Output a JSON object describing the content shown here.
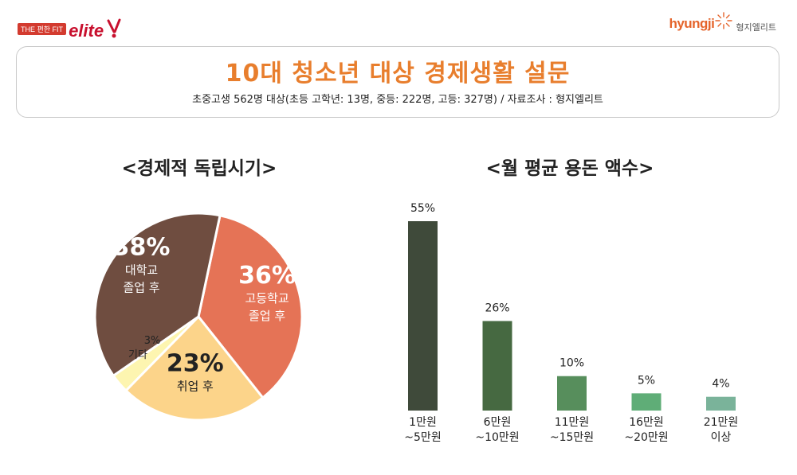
{
  "header": {
    "left_logo": {
      "tag": "THE 편한 FIT",
      "word": "elite"
    },
    "right_logo": {
      "brand": "hyungji",
      "brand_ko": "형지엘리트"
    }
  },
  "banner": {
    "title": "10대 청소년 대상 경제생활 설문",
    "subtitle": "초중고생 562명 대상(초등 고학년: 13명, 중등: 222명, 고등: 327명) /   자료조사 : 형지엘리트"
  },
  "colors": {
    "pie": [
      "#e57356",
      "#fcd48a",
      "#fdf5b0",
      "#6f4d40"
    ],
    "bars": [
      "#3f4a3a",
      "#466941",
      "#578e5c",
      "#5fad77",
      "#7ab39a"
    ]
  },
  "chart_data": [
    {
      "type": "pie",
      "title": "<경제적 독립시기>",
      "slices": [
        {
          "pct": "36%",
          "value": 36,
          "label": [
            "고등학교",
            "졸업 후"
          ]
        },
        {
          "pct": "23%",
          "value": 23,
          "label": [
            "취업 후"
          ]
        },
        {
          "pct": "3%",
          "value": 3,
          "label": [
            "기타"
          ]
        },
        {
          "pct": "38%",
          "value": 38,
          "label": [
            "대학교",
            "졸업 후"
          ]
        }
      ]
    },
    {
      "type": "bar",
      "title": "<월 평균 용돈 액수>",
      "categories": [
        [
          "1만원",
          "~5만원"
        ],
        [
          "6만원",
          "~10만원"
        ],
        [
          "11만원",
          "~15만원"
        ],
        [
          "16만원",
          "~20만원"
        ],
        [
          "21만원",
          "이상"
        ]
      ],
      "values": [
        55,
        26,
        10,
        5,
        4
      ],
      "value_labels": [
        "55%",
        "26%",
        "10%",
        "5%",
        "4%"
      ],
      "ylim": [
        0,
        55
      ]
    }
  ]
}
